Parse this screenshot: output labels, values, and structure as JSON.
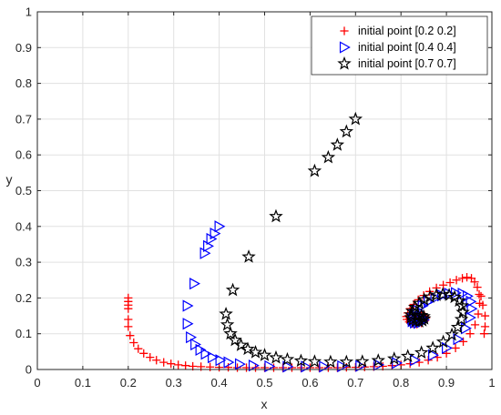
{
  "chart_data": {
    "type": "scatter",
    "title": "",
    "xlabel": "x",
    "ylabel": "y",
    "xlim": [
      0,
      1
    ],
    "ylim": [
      0,
      1
    ],
    "xticks": [
      "0",
      "0.1",
      "0.2",
      "0.3",
      "0.4",
      "0.5",
      "0.6",
      "0.7",
      "0.8",
      "0.9",
      "1"
    ],
    "yticks": [
      "0",
      "0.1",
      "0.2",
      "0.3",
      "0.4",
      "0.5",
      "0.6",
      "0.7",
      "0.8",
      "0.9",
      "1"
    ],
    "grid": true,
    "legend_position": "top-right",
    "series": [
      {
        "name": "initial point [0.2 0.2]",
        "marker": "plus",
        "color": "#ff0000",
        "points": [
          [
            0.2,
            0.2
          ],
          [
            0.2,
            0.19
          ],
          [
            0.2,
            0.18
          ],
          [
            0.2,
            0.17
          ],
          [
            0.2,
            0.14
          ],
          [
            0.2,
            0.12
          ],
          [
            0.204,
            0.095
          ],
          [
            0.212,
            0.075
          ],
          [
            0.222,
            0.058
          ],
          [
            0.234,
            0.045
          ],
          [
            0.248,
            0.034
          ],
          [
            0.262,
            0.026
          ],
          [
            0.278,
            0.02
          ],
          [
            0.294,
            0.016
          ],
          [
            0.31,
            0.013
          ],
          [
            0.326,
            0.011
          ],
          [
            0.342,
            0.009
          ],
          [
            0.36,
            0.008
          ],
          [
            0.38,
            0.007
          ],
          [
            0.4,
            0.006
          ],
          [
            0.42,
            0.006
          ],
          [
            0.44,
            0.005
          ],
          [
            0.46,
            0.005
          ],
          [
            0.48,
            0.005
          ],
          [
            0.5,
            0.005
          ],
          [
            0.52,
            0.005
          ],
          [
            0.54,
            0.005
          ],
          [
            0.56,
            0.005
          ],
          [
            0.58,
            0.005
          ],
          [
            0.6,
            0.005
          ],
          [
            0.62,
            0.005
          ],
          [
            0.64,
            0.005
          ],
          [
            0.66,
            0.005
          ],
          [
            0.68,
            0.006
          ],
          [
            0.7,
            0.006
          ],
          [
            0.72,
            0.007
          ],
          [
            0.74,
            0.008
          ],
          [
            0.76,
            0.009
          ],
          [
            0.78,
            0.011
          ],
          [
            0.8,
            0.013
          ],
          [
            0.82,
            0.016
          ],
          [
            0.84,
            0.02
          ],
          [
            0.86,
            0.026
          ],
          [
            0.88,
            0.034
          ],
          [
            0.9,
            0.045
          ],
          [
            0.92,
            0.06
          ],
          [
            0.937,
            0.078
          ],
          [
            0.952,
            0.1
          ],
          [
            0.963,
            0.125
          ],
          [
            0.97,
            0.155
          ],
          [
            0.973,
            0.185
          ],
          [
            0.972,
            0.21
          ],
          [
            0.968,
            0.23
          ],
          [
            0.962,
            0.245
          ],
          [
            0.955,
            0.255
          ],
          [
            0.945,
            0.258
          ],
          [
            0.935,
            0.255
          ],
          [
            0.922,
            0.25
          ],
          [
            0.908,
            0.243
          ],
          [
            0.893,
            0.236
          ],
          [
            0.878,
            0.228
          ],
          [
            0.863,
            0.218
          ],
          [
            0.85,
            0.207
          ],
          [
            0.838,
            0.195
          ],
          [
            0.828,
            0.182
          ],
          [
            0.82,
            0.17
          ],
          [
            0.815,
            0.158
          ],
          [
            0.812,
            0.148
          ],
          [
            0.813,
            0.14
          ],
          [
            0.818,
            0.133
          ],
          [
            0.826,
            0.128
          ],
          [
            0.835,
            0.127
          ],
          [
            0.845,
            0.13
          ],
          [
            0.852,
            0.136
          ],
          [
            0.855,
            0.144
          ],
          [
            0.852,
            0.15
          ],
          [
            0.845,
            0.153
          ],
          [
            0.838,
            0.152
          ],
          [
            0.832,
            0.148
          ],
          [
            0.83,
            0.142
          ],
          [
            0.834,
            0.138
          ],
          [
            0.84,
            0.138
          ],
          [
            0.976,
            0.205
          ],
          [
            0.98,
            0.18
          ],
          [
            0.985,
            0.15
          ],
          [
            0.985,
            0.12
          ],
          [
            0.983,
            0.1
          ]
        ]
      },
      {
        "name": "initial point [0.4 0.4]",
        "marker": "triangle-right",
        "color": "#0000ff",
        "points": [
          [
            0.4,
            0.4
          ],
          [
            0.39,
            0.38
          ],
          [
            0.382,
            0.365
          ],
          [
            0.375,
            0.345
          ],
          [
            0.368,
            0.325
          ],
          [
            0.345,
            0.24
          ],
          [
            0.33,
            0.178
          ],
          [
            0.33,
            0.128
          ],
          [
            0.337,
            0.09
          ],
          [
            0.347,
            0.07
          ],
          [
            0.358,
            0.055
          ],
          [
            0.37,
            0.044
          ],
          [
            0.385,
            0.034
          ],
          [
            0.402,
            0.026
          ],
          [
            0.42,
            0.02
          ],
          [
            0.445,
            0.015
          ],
          [
            0.475,
            0.011
          ],
          [
            0.51,
            0.009
          ],
          [
            0.55,
            0.008
          ],
          [
            0.59,
            0.008
          ],
          [
            0.63,
            0.008
          ],
          [
            0.67,
            0.009
          ],
          [
            0.71,
            0.01
          ],
          [
            0.75,
            0.013
          ],
          [
            0.79,
            0.018
          ],
          [
            0.83,
            0.026
          ],
          [
            0.87,
            0.04
          ],
          [
            0.9,
            0.06
          ],
          [
            0.925,
            0.085
          ],
          [
            0.942,
            0.115
          ],
          [
            0.952,
            0.145
          ],
          [
            0.955,
            0.17
          ],
          [
            0.953,
            0.19
          ],
          [
            0.946,
            0.205
          ],
          [
            0.935,
            0.212
          ],
          [
            0.92,
            0.214
          ],
          [
            0.905,
            0.212
          ],
          [
            0.89,
            0.207
          ],
          [
            0.875,
            0.2
          ],
          [
            0.86,
            0.19
          ],
          [
            0.847,
            0.178
          ],
          [
            0.836,
            0.165
          ],
          [
            0.828,
            0.152
          ],
          [
            0.824,
            0.142
          ],
          [
            0.825,
            0.135
          ],
          [
            0.83,
            0.131
          ],
          [
            0.838,
            0.13
          ],
          [
            0.846,
            0.133
          ],
          [
            0.85,
            0.139
          ],
          [
            0.848,
            0.145
          ],
          [
            0.842,
            0.148
          ],
          [
            0.835,
            0.146
          ]
        ]
      },
      {
        "name": "initial point [0.7 0.7]",
        "marker": "star",
        "color": "#000000",
        "points": [
          [
            0.7,
            0.7
          ],
          [
            0.68,
            0.665
          ],
          [
            0.66,
            0.628
          ],
          [
            0.64,
            0.593
          ],
          [
            0.61,
            0.555
          ],
          [
            0.525,
            0.428
          ],
          [
            0.465,
            0.315
          ],
          [
            0.43,
            0.222
          ],
          [
            0.415,
            0.155
          ],
          [
            0.418,
            0.125
          ],
          [
            0.425,
            0.1
          ],
          [
            0.435,
            0.082
          ],
          [
            0.448,
            0.068
          ],
          [
            0.463,
            0.057
          ],
          [
            0.48,
            0.048
          ],
          [
            0.5,
            0.04
          ],
          [
            0.525,
            0.033
          ],
          [
            0.55,
            0.028
          ],
          [
            0.58,
            0.024
          ],
          [
            0.61,
            0.022
          ],
          [
            0.645,
            0.021
          ],
          [
            0.68,
            0.021
          ],
          [
            0.715,
            0.022
          ],
          [
            0.75,
            0.025
          ],
          [
            0.785,
            0.03
          ],
          [
            0.815,
            0.037
          ],
          [
            0.845,
            0.047
          ],
          [
            0.87,
            0.06
          ],
          [
            0.893,
            0.077
          ],
          [
            0.912,
            0.097
          ],
          [
            0.925,
            0.118
          ],
          [
            0.933,
            0.14
          ],
          [
            0.936,
            0.16
          ],
          [
            0.934,
            0.178
          ],
          [
            0.928,
            0.192
          ],
          [
            0.918,
            0.202
          ],
          [
            0.906,
            0.208
          ],
          [
            0.892,
            0.21
          ],
          [
            0.878,
            0.208
          ],
          [
            0.864,
            0.203
          ],
          [
            0.851,
            0.195
          ],
          [
            0.84,
            0.185
          ],
          [
            0.831,
            0.174
          ],
          [
            0.825,
            0.163
          ],
          [
            0.822,
            0.153
          ],
          [
            0.822,
            0.145
          ],
          [
            0.826,
            0.139
          ],
          [
            0.832,
            0.135
          ],
          [
            0.84,
            0.134
          ],
          [
            0.847,
            0.137
          ],
          [
            0.851,
            0.142
          ],
          [
            0.85,
            0.148
          ],
          [
            0.845,
            0.151
          ],
          [
            0.838,
            0.15
          ]
        ]
      }
    ]
  }
}
